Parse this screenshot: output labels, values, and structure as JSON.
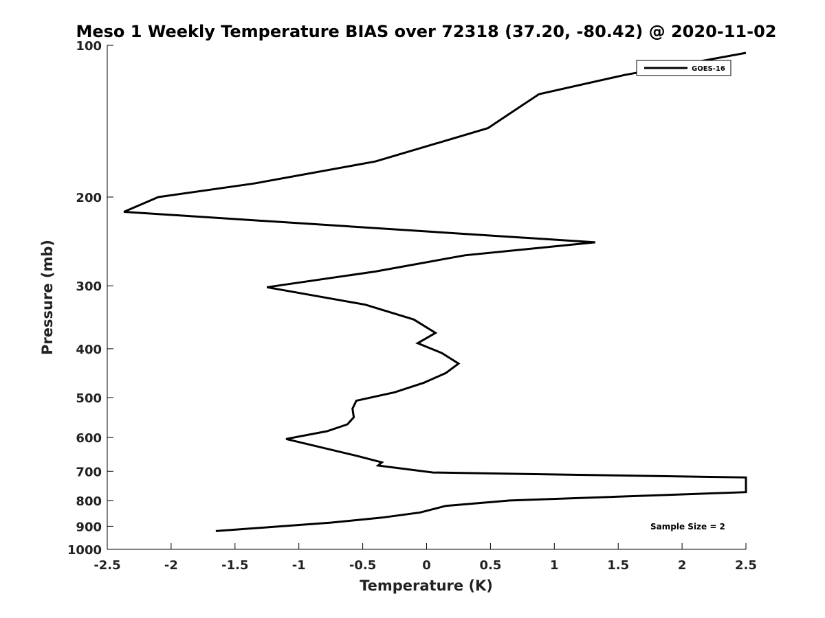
{
  "chart_data": {
    "type": "line",
    "title": "Meso 1 Weekly Temperature BIAS over 72318 (37.20, -80.42) @ 2020-11-02",
    "xlabel": "Temperature (K)",
    "ylabel": "Pressure (mb)",
    "xlim": [
      -2.5,
      2.5
    ],
    "ylim": [
      100,
      1000
    ],
    "y_scale": "log",
    "y_reversed": true,
    "grid": false,
    "x_ticks": [
      -2.5,
      -2,
      -1.5,
      -1,
      -0.5,
      0,
      0.5,
      1,
      1.5,
      2,
      2.5
    ],
    "x_tick_labels": [
      "-2.5",
      "-2",
      "-1.5",
      "-1",
      "-0.5",
      "0",
      "0.5",
      "1",
      "1.5",
      "2",
      "2.5"
    ],
    "y_ticks": [
      100,
      200,
      300,
      400,
      500,
      600,
      700,
      800,
      900,
      1000
    ],
    "y_tick_labels": [
      "100",
      "200",
      "300",
      "400",
      "500",
      "600",
      "700",
      "800",
      "900",
      "1000"
    ],
    "legend_position": "top-right",
    "series": [
      {
        "name": "GOES-16",
        "color": "#000000",
        "points": [
          [
            2.5,
            103.5
          ],
          [
            1.55,
            114.5
          ],
          [
            0.88,
            125
          ],
          [
            0.48,
            146
          ],
          [
            -0.4,
            170
          ],
          [
            -1.35,
            188
          ],
          [
            -2.1,
            200
          ],
          [
            -2.37,
            214
          ],
          [
            1.32,
            246
          ],
          [
            0.3,
            261
          ],
          [
            -0.4,
            281
          ],
          [
            -1.25,
            302
          ],
          [
            -0.48,
            327
          ],
          [
            -0.1,
            350
          ],
          [
            0.07,
            372
          ],
          [
            -0.07,
            390
          ],
          [
            0.12,
            408
          ],
          [
            0.25,
            428
          ],
          [
            0.15,
            447
          ],
          [
            -0.02,
            467
          ],
          [
            -0.25,
            488
          ],
          [
            -0.55,
            507
          ],
          [
            -0.58,
            526
          ],
          [
            -0.57,
            547
          ],
          [
            -0.62,
            565
          ],
          [
            -0.78,
            583
          ],
          [
            -1.1,
            604
          ],
          [
            -0.55,
            652
          ],
          [
            -0.35,
            672
          ],
          [
            -0.38,
            682
          ],
          [
            0.05,
            704
          ],
          [
            2.5,
            720
          ],
          [
            2.5,
            770
          ],
          [
            0.65,
            800
          ],
          [
            0.15,
            820
          ],
          [
            -0.05,
            845
          ],
          [
            -0.35,
            865
          ],
          [
            -0.75,
            885
          ],
          [
            -1.65,
            920
          ]
        ]
      }
    ],
    "annotations": [
      {
        "text": "Sample Size = 2",
        "position": "bottom-right"
      }
    ]
  }
}
